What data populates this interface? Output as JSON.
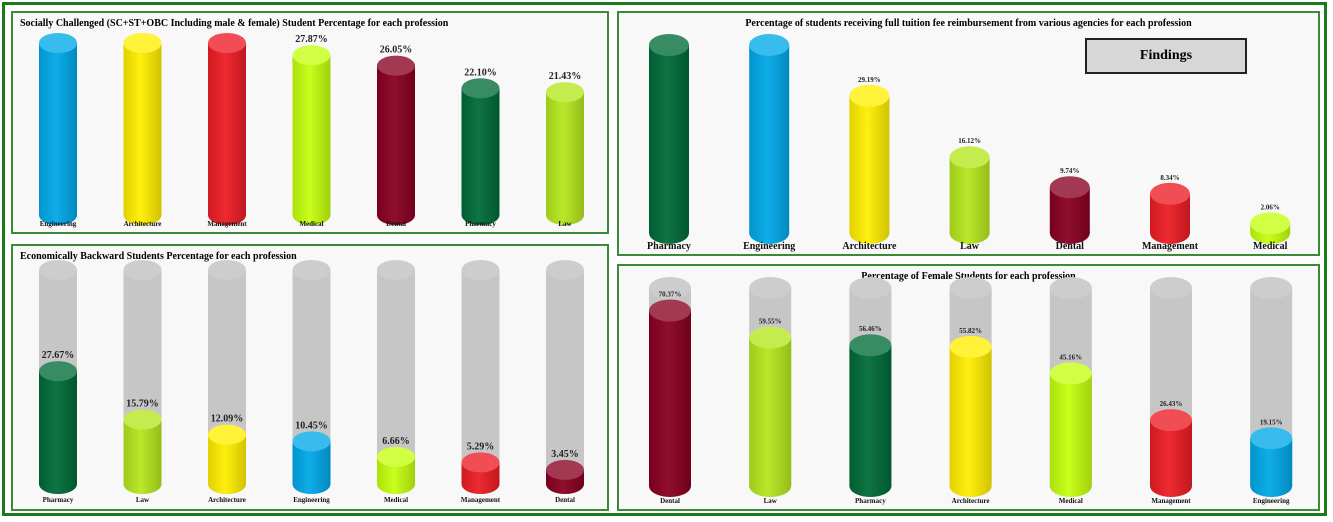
{
  "findings_label": "Findings",
  "chart_data": [
    {
      "id": "socially-challenged",
      "type": "bar",
      "title": "Socially Challenged (SC+ST+OBC Including male & female) Student Percentage for each  profession",
      "categories": [
        "Engineering",
        "Architecture",
        "Management",
        "Medical",
        "Dental",
        "Pharmacy",
        "Law"
      ],
      "values": [
        null,
        null,
        null,
        27.87,
        26.05,
        22.1,
        21.43
      ],
      "labels": [
        "",
        "",
        "",
        "27.87%",
        "26.05%",
        "22.10%",
        "21.43%"
      ],
      "colors": [
        "#00a8e8",
        "#ffee00",
        "#ec1c24",
        "#c4ff0e",
        "#880021",
        "#006b38",
        "#b5e61d"
      ],
      "ylim": [
        0,
        30
      ],
      "background_cylinders": false
    },
    {
      "id": "full-reimbursement",
      "type": "bar",
      "title": "Percentage of students receiving full tuition fee reimbursement from various agencies for each profession",
      "categories": [
        "Pharmacy",
        "Engineering",
        "Architecture",
        "Law",
        "Dental",
        "Management",
        "Medical"
      ],
      "values": [
        null,
        null,
        29.19,
        16.12,
        9.74,
        8.34,
        2.06
      ],
      "labels": [
        "",
        "",
        "29.19%",
        "16.12%",
        "9.74%",
        "8.34%",
        "2.06%"
      ],
      "colors": [
        "#006b38",
        "#00a8e8",
        "#ffee00",
        "#b5e61d",
        "#880021",
        "#ec1c24",
        "#c4ff0e"
      ],
      "ylim": [
        0,
        40
      ],
      "background_cylinders": false
    },
    {
      "id": "economically-backward",
      "type": "bar",
      "title": "Economically Backward Students Percentage for each profession",
      "categories": [
        "Pharmacy",
        "Law",
        "Architecture",
        "Engineering",
        "Medical",
        "Management",
        "Dental"
      ],
      "values": [
        27.67,
        15.79,
        12.09,
        10.45,
        6.66,
        5.29,
        3.45
      ],
      "labels": [
        "27.67%",
        "15.79%",
        "12.09%",
        "10.45%",
        "6.66%",
        "5.29%",
        "3.45%"
      ],
      "colors": [
        "#006b38",
        "#b5e61d",
        "#ffee00",
        "#00a8e8",
        "#c4ff0e",
        "#ec1c24",
        "#880021"
      ],
      "ylim": [
        0,
        50
      ],
      "background_cylinders": true
    },
    {
      "id": "female-students",
      "type": "bar",
      "title": "Percentage of Female Students for each profession",
      "categories": [
        "Dental",
        "Law",
        "Pharmacy",
        "Architecture",
        "Medical",
        "Management",
        "Engineering"
      ],
      "values": [
        70.37,
        59.55,
        56.46,
        55.82,
        45.16,
        26.43,
        19.15
      ],
      "labels": [
        "70.37%",
        "59.55%",
        "56.46%",
        "55.82%",
        "45.16%",
        "26.43%",
        "19.15%"
      ],
      "colors": [
        "#880021",
        "#b5e61d",
        "#006b38",
        "#ffee00",
        "#c4ff0e",
        "#ec1c24",
        "#00a8e8"
      ],
      "ylim": [
        0,
        75
      ],
      "background_cylinders": true
    }
  ]
}
